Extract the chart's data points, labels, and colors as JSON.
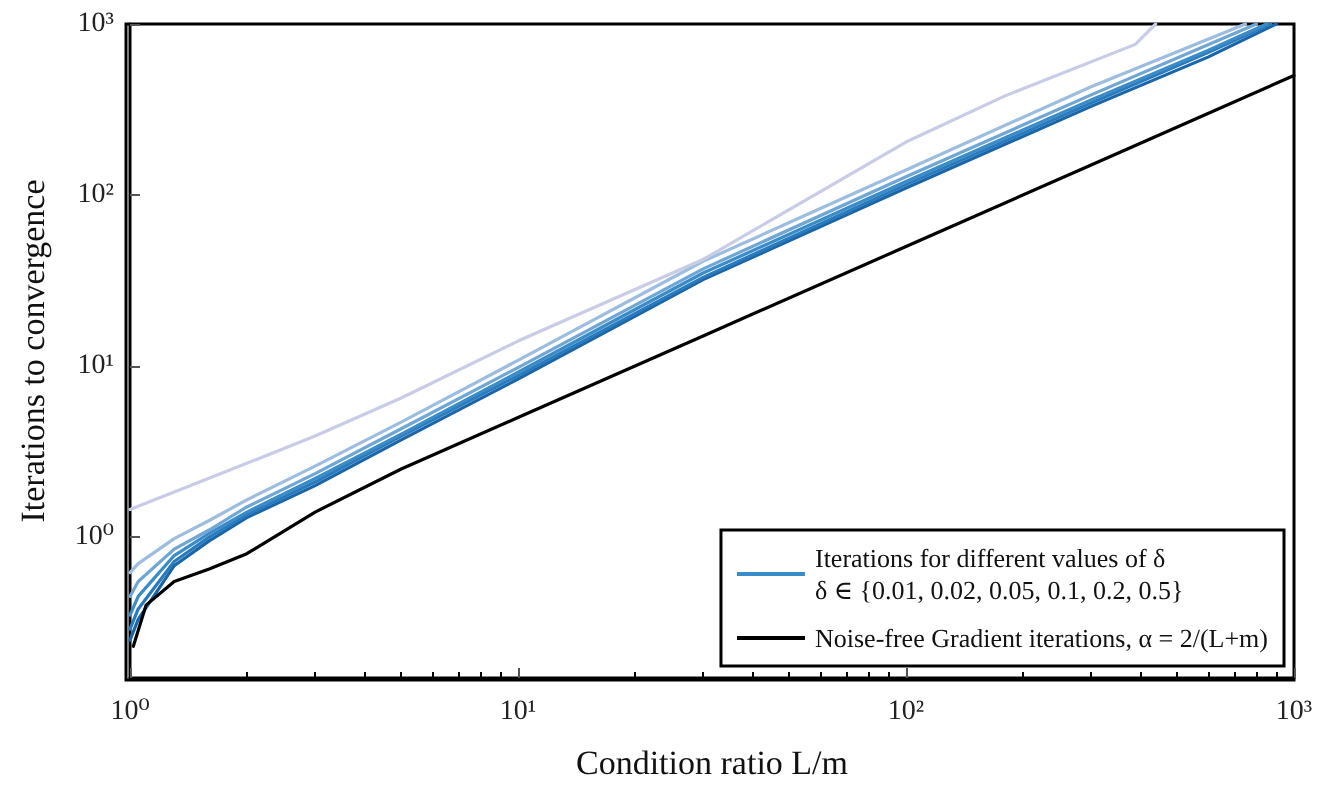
{
  "chart_data": {
    "type": "line",
    "xlabel": "Condition ratio L/m",
    "ylabel": "Iterations to convergence",
    "log": "xy",
    "xlim": [
      1,
      1000
    ],
    "ylim": [
      0.15,
      1000
    ],
    "xticks": [
      {
        "value": 1,
        "label": "10⁰"
      },
      {
        "value": 10,
        "label": "10¹"
      },
      {
        "value": 100,
        "label": "10²"
      },
      {
        "value": 1000,
        "label": "10³"
      }
    ],
    "yticks": [
      {
        "value": 1,
        "label": "10⁰"
      },
      {
        "value": 10,
        "label": "10¹"
      },
      {
        "value": 100,
        "label": "10²"
      },
      {
        "value": 1000,
        "label": "10³"
      }
    ],
    "grid": false,
    "legend": "bottom right",
    "marker": "none",
    "line_style": "solid",
    "series": [
      {
        "color": "#1a66a8",
        "x": [
          1,
          1.05,
          1.3,
          1.6,
          2,
          3,
          5,
          10,
          30,
          100,
          300,
          600,
          900
        ],
        "values": [
          0.25,
          0.33,
          0.68,
          0.95,
          1.3,
          2.0,
          3.7,
          8.4,
          32,
          110,
          330,
          640,
          1000
        ]
      },
      {
        "color": "#2a7bbd",
        "x": [
          1,
          1.05,
          1.3,
          1.6,
          2,
          3,
          5,
          10,
          30,
          100,
          300,
          600,
          870
        ],
        "values": [
          0.29,
          0.38,
          0.72,
          1.0,
          1.35,
          2.1,
          3.9,
          8.8,
          33,
          115,
          345,
          680,
          1000
        ]
      },
      {
        "name": "Iterations for different values of δ\nδ ∈ {0.01, 0.02, 0.05, 0.1, 0.2, 0.5}",
        "color": "#3a8cc8",
        "x": [
          1,
          1.05,
          1.3,
          1.6,
          2,
          3,
          5,
          10,
          30,
          100,
          300,
          600,
          850
        ],
        "values": [
          0.35,
          0.45,
          0.78,
          1.05,
          1.4,
          2.2,
          4.0,
          9.2,
          35,
          120,
          360,
          700,
          1000
        ]
      },
      {
        "color": "#6fa6d4",
        "x": [
          1,
          1.05,
          1.3,
          1.6,
          2,
          3,
          5,
          10,
          30,
          100,
          300,
          800
        ],
        "values": [
          0.45,
          0.55,
          0.85,
          1.1,
          1.5,
          2.35,
          4.3,
          9.8,
          37,
          128,
          385,
          1000
        ]
      },
      {
        "color": "#9dbde0",
        "x": [
          1,
          1.05,
          1.3,
          1.6,
          2,
          3,
          5,
          10,
          30,
          100,
          300,
          750
        ],
        "values": [
          0.62,
          0.7,
          0.98,
          1.25,
          1.65,
          2.6,
          4.7,
          10.8,
          41,
          140,
          430,
          1000
        ]
      },
      {
        "color": "#c9cce6",
        "x": [
          1,
          2,
          3,
          5,
          10,
          30,
          100,
          180,
          390,
          440
        ],
        "values": [
          1.45,
          2.7,
          3.9,
          6.5,
          14,
          42,
          204,
          380,
          760,
          1000
        ]
      },
      {
        "name": "Noise-free Gradient iterations, α = 2/(L+m)",
        "color": "#000000",
        "x": [
          1.02,
          1.1,
          1.3,
          1.6,
          2,
          3,
          5,
          10,
          30,
          100,
          300,
          1000
        ],
        "values": [
          0.23,
          0.4,
          0.55,
          0.65,
          0.8,
          1.4,
          2.5,
          5,
          15,
          50,
          150,
          500
        ]
      }
    ]
  }
}
